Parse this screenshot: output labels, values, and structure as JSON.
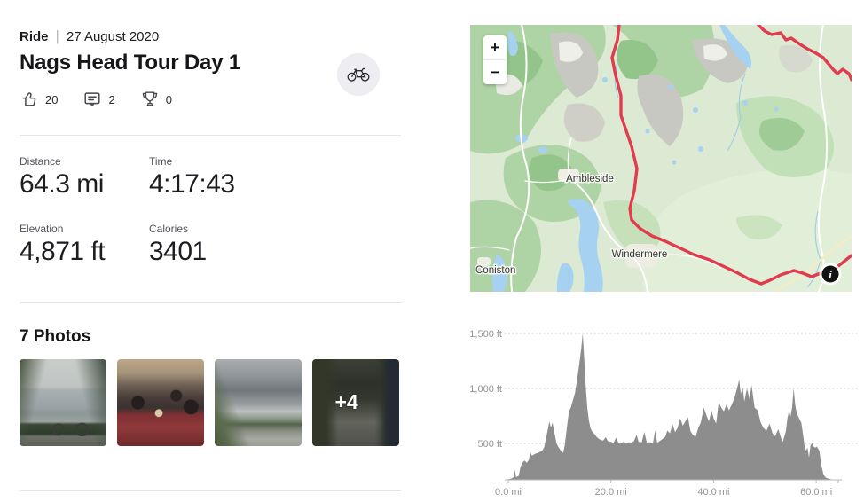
{
  "header": {
    "activity_type": "Ride",
    "separator": "|",
    "date": "27 August 2020",
    "title": "Nags Head Tour Day 1"
  },
  "social": {
    "kudos_count": "20",
    "comments_count": "2",
    "achievements_count": "0"
  },
  "stats": [
    {
      "label": "Distance",
      "value": "64.3 mi"
    },
    {
      "label": "Time",
      "value": "4:17:43"
    },
    {
      "label": "Elevation",
      "value": "4,871 ft"
    },
    {
      "label": "Calories",
      "value": "3401"
    }
  ],
  "photos": {
    "heading": "7 Photos",
    "more_overlay": "+4",
    "items": [
      {
        "alt": "Road bike leaning by a lake with hills"
      },
      {
        "alt": "Group dinner at a restaurant table"
      },
      {
        "alt": "Cloudy valley with cyclists on a road"
      },
      {
        "alt": "Cyclists riding down a country lane"
      }
    ]
  },
  "map": {
    "zoom_in": "+",
    "zoom_out": "−",
    "info_icon": "i",
    "labels": [
      {
        "name": "Ambleside"
      },
      {
        "name": "Windermere"
      },
      {
        "name": "Coniston"
      }
    ]
  },
  "colors": {
    "route_red": "#e13b4d",
    "chart_fill": "#8d8d8d",
    "map_land": "#dcead3",
    "map_forest": "#aed3a4",
    "map_water": "#a7d1f0",
    "text_dark": "#1d1d21"
  },
  "chart_data": {
    "type": "area",
    "series_name": "elevation_profile",
    "xlim": [
      0,
      64.3
    ],
    "ylim": [
      170,
      1500
    ],
    "grid": "dotted-horizontal",
    "legend": "none",
    "fill_color": "#8d8d8d",
    "x_ticks": [
      {
        "value": 0,
        "label": "0.0 mi"
      },
      {
        "value": 20,
        "label": "20.0 mi"
      },
      {
        "value": 40,
        "label": "40.0 mi"
      },
      {
        "value": 60,
        "label": "60.0 mi"
      }
    ],
    "y_ticks": [
      {
        "value": 500,
        "label": "500 ft"
      },
      {
        "value": 1000,
        "label": "1,000 ft"
      },
      {
        "value": 1500,
        "label": "1,500 ft"
      }
    ],
    "points": [
      [
        0,
        175
      ],
      [
        0.4,
        180
      ],
      [
        0.8,
        185
      ],
      [
        1.1,
        195
      ],
      [
        1.3,
        265
      ],
      [
        1.5,
        195
      ],
      [
        2,
        205
      ],
      [
        2.4,
        290
      ],
      [
        2.8,
        330
      ],
      [
        3.2,
        345
      ],
      [
        3.6,
        325
      ],
      [
        4,
        350
      ],
      [
        4.3,
        420
      ],
      [
        4.6,
        390
      ],
      [
        5,
        400
      ],
      [
        5.4,
        410
      ],
      [
        5.8,
        415
      ],
      [
        6.2,
        425
      ],
      [
        6.6,
        435
      ],
      [
        7,
        465
      ],
      [
        7.5,
        580
      ],
      [
        8,
        700
      ],
      [
        8.3,
        645
      ],
      [
        8.6,
        690
      ],
      [
        9,
        595
      ],
      [
        9.4,
        500
      ],
      [
        9.8,
        465
      ],
      [
        10.3,
        430
      ],
      [
        10.7,
        415
      ],
      [
        11,
        480
      ],
      [
        11.4,
        640
      ],
      [
        11.8,
        790
      ],
      [
        12.2,
        830
      ],
      [
        12.6,
        895
      ],
      [
        13,
        960
      ],
      [
        13.4,
        1080
      ],
      [
        13.8,
        1210
      ],
      [
        14.2,
        1360
      ],
      [
        14.5,
        1500
      ],
      [
        14.8,
        1270
      ],
      [
        15.1,
        1010
      ],
      [
        15.4,
        820
      ],
      [
        15.7,
        715
      ],
      [
        16,
        640
      ],
      [
        16.4,
        605
      ],
      [
        16.8,
        585
      ],
      [
        17.2,
        560
      ],
      [
        17.6,
        545
      ],
      [
        18,
        532
      ],
      [
        18.5,
        527
      ],
      [
        19,
        558
      ],
      [
        19.4,
        522
      ],
      [
        20,
        515
      ],
      [
        20.5,
        506
      ],
      [
        21,
        552
      ],
      [
        21.5,
        502
      ],
      [
        22,
        508
      ],
      [
        22.5,
        515
      ],
      [
        23,
        502
      ],
      [
        23.5,
        512
      ],
      [
        24,
        506
      ],
      [
        24.5,
        522
      ],
      [
        25,
        578
      ],
      [
        25.4,
        516
      ],
      [
        26,
        510
      ],
      [
        26.5,
        605
      ],
      [
        27,
        506
      ],
      [
        27.6,
        512
      ],
      [
        28.2,
        502
      ],
      [
        28.6,
        618
      ],
      [
        29,
        506
      ],
      [
        29.5,
        522
      ],
      [
        30,
        540
      ],
      [
        30.6,
        562
      ],
      [
        31,
        618
      ],
      [
        31.5,
        592
      ],
      [
        32,
        678
      ],
      [
        32.5,
        602
      ],
      [
        33,
        642
      ],
      [
        33.5,
        730
      ],
      [
        34,
        662
      ],
      [
        34.5,
        702
      ],
      [
        35,
        740
      ],
      [
        35.5,
        612
      ],
      [
        36,
        576
      ],
      [
        36.5,
        562
      ],
      [
        37,
        640
      ],
      [
        37.5,
        692
      ],
      [
        38.1,
        825
      ],
      [
        38.7,
        745
      ],
      [
        39.1,
        702
      ],
      [
        39.6,
        800
      ],
      [
        40,
        730
      ],
      [
        40.5,
        682
      ],
      [
        41,
        878
      ],
      [
        41.5,
        826
      ],
      [
        42,
        792
      ],
      [
        42.5,
        855
      ],
      [
        43,
        802
      ],
      [
        43.5,
        850
      ],
      [
        44,
        905
      ],
      [
        44.5,
        985
      ],
      [
        45,
        1080
      ],
      [
        45.3,
        952
      ],
      [
        45.7,
        1002
      ],
      [
        46,
        882
      ],
      [
        46.5,
        1000
      ],
      [
        47,
        906
      ],
      [
        47.4,
        1030
      ],
      [
        48,
        826
      ],
      [
        48.6,
        800
      ],
      [
        49.2,
        690
      ],
      [
        49.7,
        642
      ],
      [
        50.3,
        616
      ],
      [
        50.9,
        680
      ],
      [
        51.5,
        592
      ],
      [
        52,
        566
      ],
      [
        52.6,
        630
      ],
      [
        53.2,
        542
      ],
      [
        53.5,
        516
      ],
      [
        54.1,
        616
      ],
      [
        54.4,
        730
      ],
      [
        54.7,
        800
      ],
      [
        55,
        746
      ],
      [
        55.3,
        826
      ],
      [
        55.6,
        1000
      ],
      [
        55.9,
        856
      ],
      [
        56.2,
        776
      ],
      [
        56.5,
        746
      ],
      [
        56.8,
        716
      ],
      [
        57.1,
        690
      ],
      [
        57.4,
        592
      ],
      [
        57.7,
        486
      ],
      [
        58,
        436
      ],
      [
        58.3,
        462
      ],
      [
        58.6,
        372
      ],
      [
        58.9,
        486
      ],
      [
        59.2,
        502
      ],
      [
        59.5,
        472
      ],
      [
        59.8,
        462
      ],
      [
        60.1,
        472
      ],
      [
        60.6,
        436
      ],
      [
        61,
        302
      ],
      [
        61.4,
        222
      ],
      [
        61.8,
        192
      ],
      [
        62.4,
        180
      ],
      [
        63,
        174
      ],
      [
        63.6,
        172
      ],
      [
        64.3,
        170
      ]
    ]
  }
}
